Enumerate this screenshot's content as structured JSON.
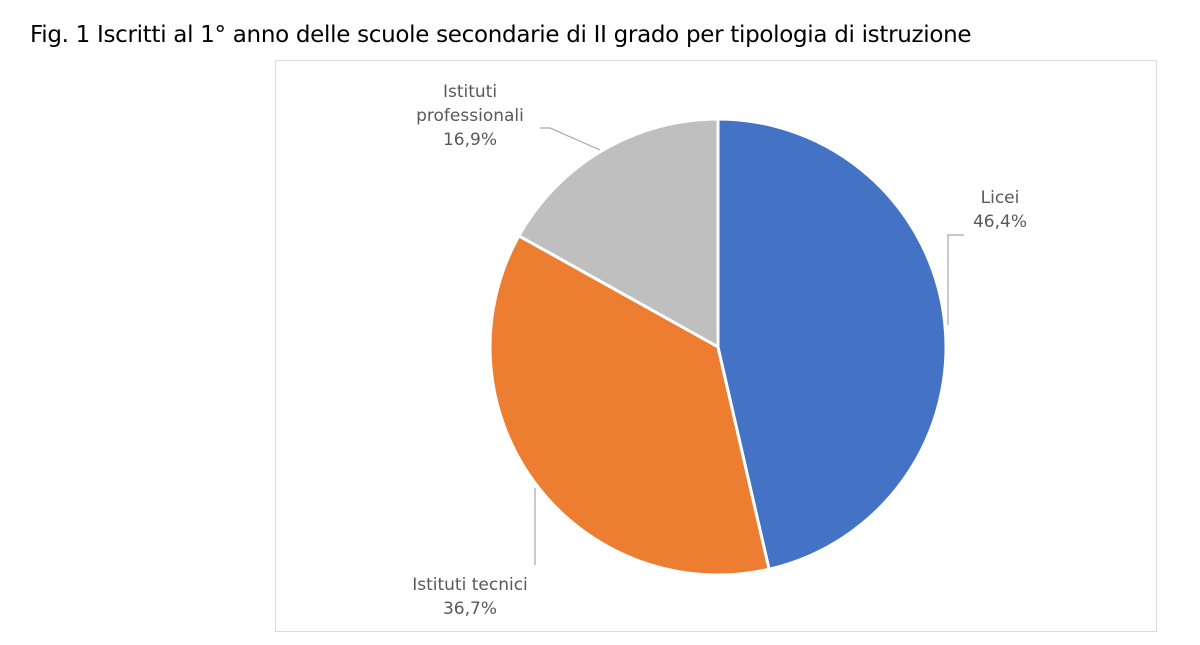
{
  "chart_data": {
    "type": "pie",
    "title": "Fig. 1 Iscritti al 1° anno delle scuole secondarie di II grado per tipologia di istruzione",
    "categories": [
      "Licei",
      "Istituti tecnici",
      "Istituti professionali"
    ],
    "values": [
      46.4,
      36.7,
      16.9
    ],
    "value_labels": [
      "46,4%",
      "36,7%",
      "16,9%"
    ],
    "colors": [
      "#4472c4",
      "#ed7d31",
      "#bfbfbf"
    ]
  }
}
